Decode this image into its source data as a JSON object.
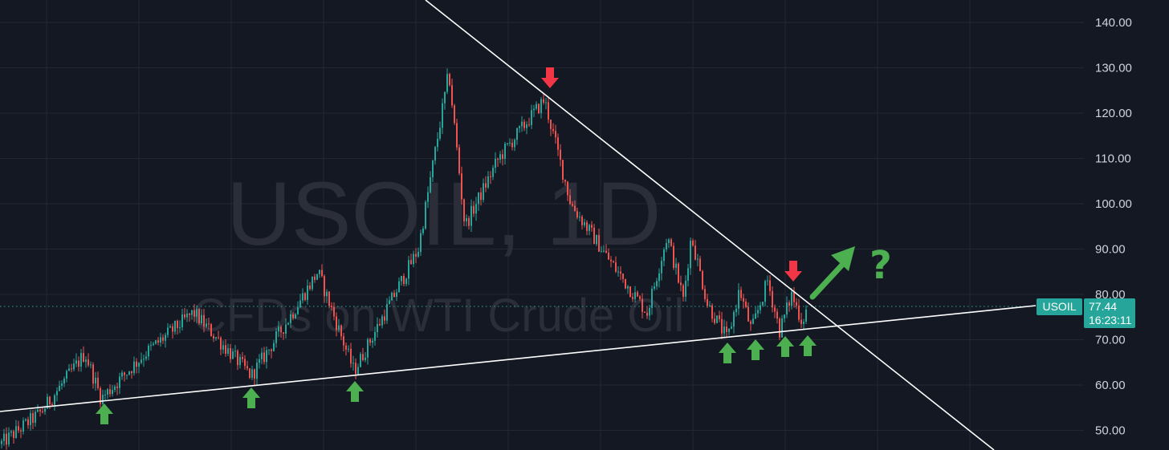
{
  "watermark": {
    "symbol_line": "USOIL, 1D",
    "description": "CFDs on WTI Crude Oil"
  },
  "price_axis": {
    "ticks": [
      "140.00",
      "130.00",
      "120.00",
      "110.00",
      "100.00",
      "90.00",
      "80.00",
      "70.00",
      "60.00",
      "50.00"
    ]
  },
  "labels": {
    "symbol_tag": "USOIL",
    "last_price": "77.44",
    "countdown": "16:23:11",
    "question": "?"
  },
  "colors": {
    "background": "#141823",
    "grid": "#232733",
    "bull": "#26a69a",
    "bear": "#ef5350",
    "support_arrow": "#4caf50",
    "resistance_arrow": "#f23645",
    "price_tag": "#26a69a",
    "trendline": "#ffffff"
  },
  "chart_data": {
    "type": "candlestick",
    "symbol": "USOIL",
    "interval": "1D",
    "y_range": [
      48,
      147
    ],
    "last_price": 77.44,
    "price_path": [
      {
        "label": "start",
        "price": 47
      },
      {
        "label": "early rise",
        "price": 54
      },
      {
        "label": "swing high",
        "price": 67
      },
      {
        "label": "pullback low",
        "price": 57
      },
      {
        "label": "rise",
        "price": 67
      },
      {
        "label": "swing high",
        "price": 76
      },
      {
        "label": "swing low",
        "price": 62
      },
      {
        "label": "rise",
        "price": 75
      },
      {
        "label": "swing high",
        "price": 85
      },
      {
        "label": "swing low",
        "price": 63
      },
      {
        "label": "rally",
        "price": 90
      },
      {
        "label": "spike high",
        "price": 129
      },
      {
        "label": "drop",
        "price": 95
      },
      {
        "label": "recovery",
        "price": 110
      },
      {
        "label": "second high",
        "price": 123
      },
      {
        "label": "decline",
        "price": 100
      },
      {
        "label": "decline",
        "price": 87
      },
      {
        "label": "low",
        "price": 76
      },
      {
        "label": "bounce",
        "price": 93
      },
      {
        "label": "low",
        "price": 79
      },
      {
        "label": "bounce",
        "price": 93
      },
      {
        "label": "decline",
        "price": 78
      },
      {
        "label": "low",
        "price": 70
      },
      {
        "label": "bounce",
        "price": 81
      },
      {
        "label": "low",
        "price": 72
      },
      {
        "label": "high",
        "price": 83
      },
      {
        "label": "low",
        "price": 72
      },
      {
        "label": "high",
        "price": 80
      },
      {
        "label": "low",
        "price": 74
      },
      {
        "label": "last",
        "price": 77.44
      }
    ],
    "trendlines": [
      {
        "name": "rising support",
        "from_price": 54.8,
        "to_price": 77.0
      },
      {
        "name": "descending resistance",
        "from_price": 153.0,
        "to_price": 45.5
      }
    ],
    "annotations": [
      {
        "kind": "support arrow up",
        "count": 7
      },
      {
        "kind": "resistance arrow down",
        "count": 2
      },
      {
        "kind": "breakout arrow",
        "label": "?"
      }
    ]
  }
}
